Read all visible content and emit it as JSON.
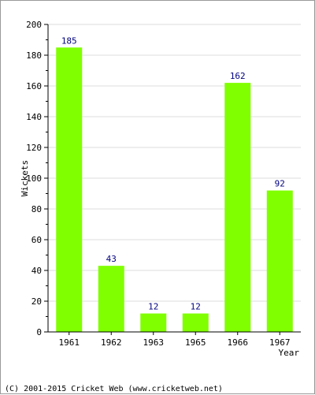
{
  "chart_data": {
    "type": "bar",
    "categories": [
      "1961",
      "1962",
      "1963",
      "1965",
      "1966",
      "1967"
    ],
    "values": [
      185,
      43,
      12,
      12,
      162,
      92
    ],
    "title": "",
    "xlabel": "Year",
    "ylabel": "Wickets",
    "ylim": [
      0,
      200
    ],
    "y_ticks": [
      0,
      20,
      40,
      60,
      80,
      100,
      120,
      140,
      160,
      180,
      200
    ],
    "grid": true,
    "bar_color": "#80ff00",
    "data_label_color": "#000080"
  },
  "footer": {
    "copyright": "(C) 2001-2015 Cricket Web (www.cricketweb.net)"
  }
}
